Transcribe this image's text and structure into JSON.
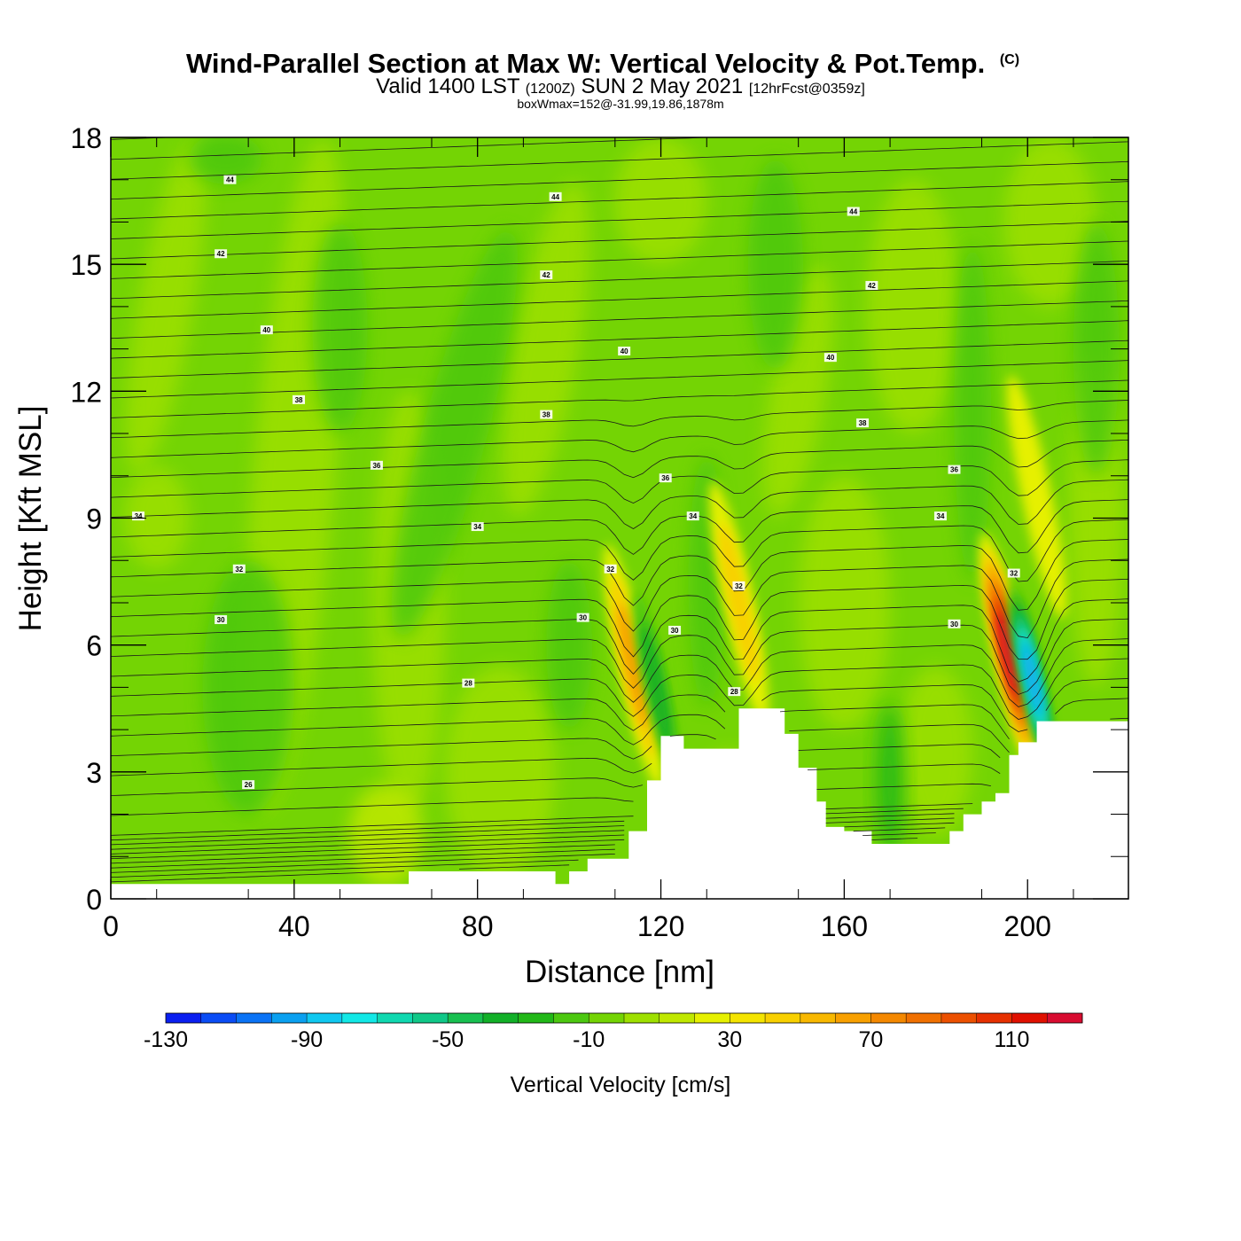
{
  "chart_data": {
    "type": "heatmap",
    "title": "Wind-Parallel Section at Max W: Vertical Velocity & Pot.Temp.",
    "title_mark": "(C)",
    "subtitle_parts": [
      "Valid 1400 LST",
      "(1200Z)",
      "SUN 2 May 2021",
      "[12hrFcst@0359z]"
    ],
    "annotation": "boxWmax=152@-31.99,19.86,1878m",
    "xlabel": "Distance [nm]",
    "ylabel": "Height [Kft MSL]",
    "xlim": [
      0,
      222
    ],
    "ylim": [
      0,
      18
    ],
    "x_ticks": [
      "0",
      "40",
      "80",
      "120",
      "160",
      "200"
    ],
    "y_ticks": [
      "0",
      "3",
      "6",
      "9",
      "12",
      "15",
      "18"
    ],
    "colorbar": {
      "label": "Vertical Velocity [cm/s]",
      "range": [
        -130,
        130
      ],
      "step": 10,
      "tick_labels": [
        "-130",
        "-90",
        "-50",
        "-10",
        "30",
        "70",
        "110"
      ],
      "colors": [
        "#0a1ff0",
        "#0a4cf5",
        "#0a73f5",
        "#0aa0f0",
        "#10c8f0",
        "#12e8e6",
        "#10d8b0",
        "#10c888",
        "#18c050",
        "#12b028",
        "#22b818",
        "#4cc810",
        "#74d404",
        "#9ee000",
        "#c0e800",
        "#e6f000",
        "#f4e400",
        "#f8d000",
        "#f8b800",
        "#f8a000",
        "#f48800",
        "#f07000",
        "#ec5000",
        "#e63000",
        "#e01000",
        "#d80c30"
      ]
    },
    "terrain_profile": {
      "distance_nm": [
        0,
        63,
        65,
        95,
        97,
        100,
        104,
        111,
        113,
        117,
        120,
        125,
        133,
        137,
        144,
        147,
        150,
        154,
        156,
        160,
        166,
        170,
        175,
        183,
        186,
        190,
        193,
        196,
        198,
        202,
        210,
        222
      ],
      "height_kft": [
        0.35,
        0.35,
        0.65,
        0.65,
        0.35,
        0.65,
        0.95,
        0.95,
        1.6,
        2.8,
        3.85,
        3.55,
        3.55,
        4.5,
        4.5,
        3.9,
        3.1,
        2.3,
        1.7,
        1.6,
        1.3,
        1.3,
        1.3,
        1.6,
        2.0,
        2.3,
        2.5,
        3.4,
        3.7,
        4.2,
        4.2,
        4.2
      ]
    },
    "vertical_velocity_features": [
      {
        "distance_nm": 114,
        "height_kft": 5.5,
        "w_cm_s": 60
      },
      {
        "distance_nm": 119,
        "height_kft": 5.0,
        "w_cm_s": -50
      },
      {
        "distance_nm": 137,
        "height_kft": 7.0,
        "w_cm_s": 40
      },
      {
        "distance_nm": 196,
        "height_kft": 5.8,
        "w_cm_s": 120
      },
      {
        "distance_nm": 201,
        "height_kft": 5.2,
        "w_cm_s": -100
      },
      {
        "distance_nm": 202,
        "height_kft": 9.5,
        "w_cm_s": 30
      }
    ],
    "theta_contour_labels": [
      {
        "text": "44",
        "x": 26,
        "y": 17.0
      },
      {
        "text": "44",
        "x": 97,
        "y": 16.6
      },
      {
        "text": "44",
        "x": 162,
        "y": 16.25
      },
      {
        "text": "42",
        "x": 24,
        "y": 15.25
      },
      {
        "text": "42",
        "x": 95,
        "y": 14.75
      },
      {
        "text": "42",
        "x": 166,
        "y": 14.5
      },
      {
        "text": "40",
        "x": 34,
        "y": 13.45
      },
      {
        "text": "40",
        "x": 112,
        "y": 12.95
      },
      {
        "text": "40",
        "x": 157,
        "y": 12.8
      },
      {
        "text": "38",
        "x": 41,
        "y": 11.8
      },
      {
        "text": "38",
        "x": 95,
        "y": 11.45
      },
      {
        "text": "38",
        "x": 164,
        "y": 11.25
      },
      {
        "text": "36",
        "x": 58,
        "y": 10.25
      },
      {
        "text": "36",
        "x": 184,
        "y": 10.15
      },
      {
        "text": "36",
        "x": 121,
        "y": 9.95
      },
      {
        "text": "34",
        "x": 6,
        "y": 9.05
      },
      {
        "text": "34",
        "x": 80,
        "y": 8.8
      },
      {
        "text": "34",
        "x": 127,
        "y": 9.05
      },
      {
        "text": "34",
        "x": 181,
        "y": 9.05
      },
      {
        "text": "32",
        "x": 28,
        "y": 7.8
      },
      {
        "text": "32",
        "x": 109,
        "y": 7.8
      },
      {
        "text": "32",
        "x": 137,
        "y": 7.4
      },
      {
        "text": "32",
        "x": 197,
        "y": 7.7
      },
      {
        "text": "30",
        "x": 24,
        "y": 6.6
      },
      {
        "text": "30",
        "x": 103,
        "y": 6.65
      },
      {
        "text": "30",
        "x": 123,
        "y": 6.35
      },
      {
        "text": "30",
        "x": 184,
        "y": 6.5
      },
      {
        "text": "28",
        "x": 78,
        "y": 5.1
      },
      {
        "text": "28",
        "x": 136,
        "y": 4.9
      },
      {
        "text": "26",
        "x": 30,
        "y": 2.7
      }
    ]
  }
}
